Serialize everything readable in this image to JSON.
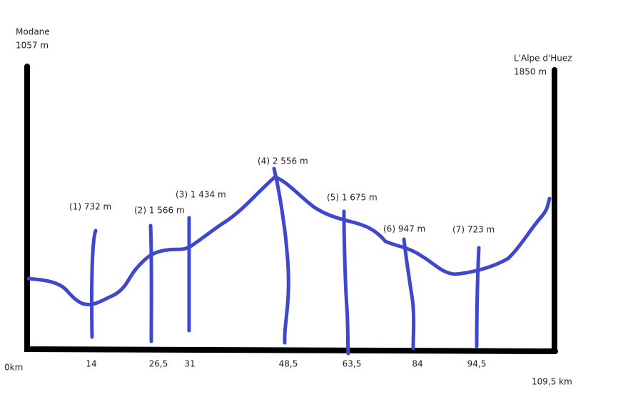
{
  "start": {
    "name": "Modane",
    "altitude": "1057 m",
    "km": "0km"
  },
  "finish": {
    "name": "L'Alpe d'Huez",
    "altitude": "1850 m",
    "km": "109,5 km"
  },
  "points": [
    {
      "label": "(1) 732 m",
      "km": "14"
    },
    {
      "label": "(2) 1 566 m",
      "km": "26,5"
    },
    {
      "label": "(3) 1 434 m",
      "km": "31"
    },
    {
      "label": "(4) 2 556 m",
      "km": "48,5"
    },
    {
      "label": "(5) 1 675 m",
      "km": "63,5"
    },
    {
      "label": "(6) 947 m",
      "km": "84"
    },
    {
      "label": "(7) 723 m",
      "km": "94,5"
    }
  ]
}
